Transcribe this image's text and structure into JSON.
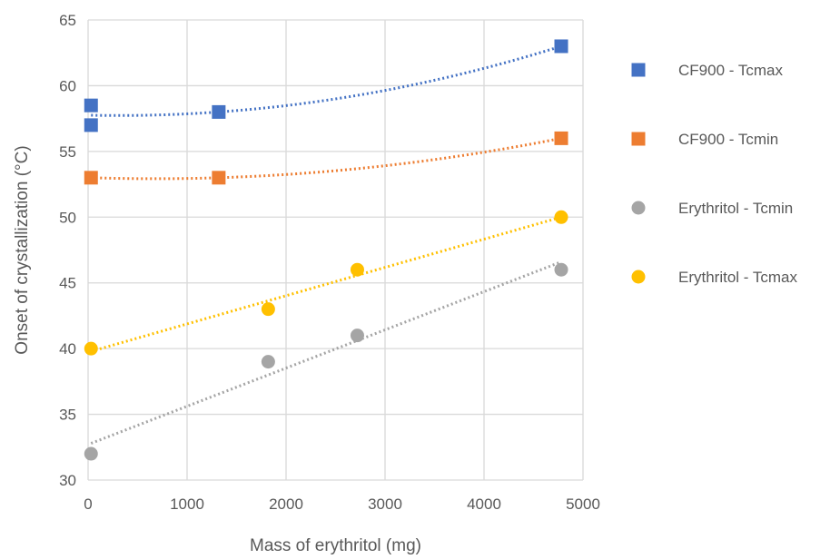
{
  "chart_data": {
    "type": "scatter",
    "title": "",
    "xlabel": "Mass of erythritol (mg)",
    "ylabel": "Onset of crystallization (°C)",
    "xlim": [
      0,
      5000
    ],
    "ylim": [
      30,
      65
    ],
    "xticks": [
      0,
      1000,
      2000,
      3000,
      4000,
      5000
    ],
    "yticks": [
      30,
      35,
      40,
      45,
      50,
      55,
      60,
      65
    ],
    "grid": true,
    "legend_position": "right",
    "series": [
      {
        "name": "CF900 - Tcmax",
        "marker": "square",
        "color": "#4472C4",
        "trendline": "polynomial",
        "points": [
          [
            30,
            58.5
          ],
          [
            30,
            57.0
          ],
          [
            1320,
            58.0
          ],
          [
            4780,
            63.0
          ]
        ]
      },
      {
        "name": "CF900 - Tcmin",
        "marker": "square",
        "color": "#ED7D31",
        "trendline": "polynomial",
        "points": [
          [
            30,
            53.0
          ],
          [
            1320,
            53.0
          ],
          [
            4780,
            56.0
          ]
        ]
      },
      {
        "name": "Erythritol - Tcmin",
        "marker": "circle",
        "color": "#A5A5A5",
        "trendline": "linear",
        "points": [
          [
            30,
            32.0
          ],
          [
            1820,
            39.0
          ],
          [
            2720,
            41.0
          ],
          [
            4780,
            46.0
          ]
        ]
      },
      {
        "name": "Erythritol - Tcmax",
        "marker": "circle",
        "color": "#FFC000",
        "trendline": "linear",
        "points": [
          [
            30,
            40.0
          ],
          [
            1820,
            43.0
          ],
          [
            2720,
            46.0
          ],
          [
            4780,
            50.0
          ]
        ]
      }
    ]
  }
}
